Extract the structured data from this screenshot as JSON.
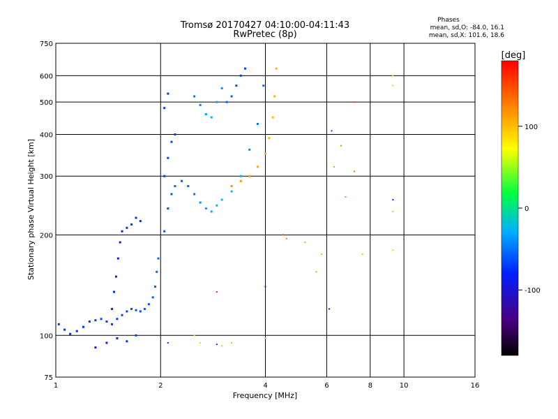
{
  "chart_data": {
    "type": "scatter",
    "title": "Tromsø 20170427 04:10:00-04:11:43",
    "subtitle": "RwPretec (8p)",
    "xlabel": "Frequency [MHz]",
    "ylabel": "Stationary phase Virtual Height [km]",
    "x_scale": "log2",
    "y_scale": "log",
    "xlim": [
      1,
      16
    ],
    "ylim": [
      75,
      750
    ],
    "x_ticks": [
      1,
      2,
      4,
      6,
      8,
      10,
      16
    ],
    "y_ticks": [
      75,
      100,
      200,
      300,
      400,
      500,
      600,
      750
    ],
    "grid": true,
    "phase_stats": {
      "title": "Phases",
      "line_o": "mean, sd,O: -84.0, 16.1",
      "line_x": "mean, sd,X: 101.6, 18.6"
    },
    "colorbar": {
      "label": "[deg]",
      "range": [
        -180,
        180
      ],
      "ticks": [
        100,
        0,
        -100
      ],
      "colormap": "rainbow"
    },
    "traces": [
      {
        "points": [
          [
            1.02,
            108,
            -95
          ],
          [
            1.06,
            104,
            -98
          ],
          [
            1.1,
            101,
            -100
          ],
          [
            1.15,
            103,
            -97
          ],
          [
            1.2,
            106,
            -95
          ],
          [
            1.25,
            110,
            -92
          ],
          [
            1.3,
            111,
            -92
          ],
          [
            1.35,
            112,
            -90
          ],
          [
            1.4,
            110,
            -93
          ],
          [
            1.45,
            108,
            -95
          ]
        ]
      },
      {
        "points": [
          [
            1.5,
            112,
            -90
          ],
          [
            1.55,
            115,
            -88
          ],
          [
            1.6,
            118,
            -86
          ],
          [
            1.65,
            120,
            -85
          ],
          [
            1.7,
            119,
            -85
          ],
          [
            1.75,
            118,
            -86
          ],
          [
            1.8,
            120,
            -84
          ],
          [
            1.85,
            124,
            -82
          ],
          [
            1.9,
            130,
            -80
          ],
          [
            1.93,
            140,
            -78
          ],
          [
            1.95,
            155,
            -76
          ],
          [
            1.97,
            170,
            -75
          ]
        ]
      },
      {
        "points": [
          [
            1.45,
            120,
            -100
          ],
          [
            1.47,
            135,
            -102
          ],
          [
            1.49,
            150,
            -105
          ],
          [
            1.51,
            170,
            -104
          ],
          [
            1.53,
            190,
            -100
          ],
          [
            1.55,
            205,
            -98
          ],
          [
            1.6,
            210,
            -95
          ],
          [
            1.65,
            215,
            -95
          ],
          [
            1.7,
            225,
            -96
          ],
          [
            1.75,
            220,
            -95
          ]
        ]
      },
      {
        "points": [
          [
            1.3,
            92,
            -105
          ],
          [
            1.4,
            95,
            -100
          ],
          [
            1.5,
            98,
            -100
          ],
          [
            1.6,
            96,
            -95
          ],
          [
            1.7,
            100,
            -90
          ]
        ]
      },
      {
        "points": [
          [
            2.05,
            205,
            -80
          ],
          [
            2.1,
            240,
            -85
          ],
          [
            2.15,
            265,
            -80
          ],
          [
            2.2,
            280,
            -78
          ],
          [
            2.3,
            290,
            -80
          ],
          [
            2.4,
            280,
            -75
          ],
          [
            2.5,
            265,
            -70
          ],
          [
            2.6,
            250,
            -60
          ],
          [
            2.7,
            240,
            -55
          ],
          [
            2.8,
            235,
            -50
          ],
          [
            2.9,
            245,
            -45
          ],
          [
            3.0,
            255,
            -40
          ],
          [
            3.2,
            270,
            -45
          ],
          [
            3.4,
            300,
            -50
          ],
          [
            3.6,
            360,
            -60
          ],
          [
            3.8,
            430,
            -70
          ],
          [
            3.95,
            560,
            -75
          ]
        ]
      },
      {
        "points": [
          [
            2.05,
            300,
            -90
          ],
          [
            2.1,
            340,
            -90
          ],
          [
            2.15,
            380,
            -88
          ],
          [
            2.2,
            400,
            -85
          ],
          [
            2.05,
            480,
            -90
          ],
          [
            2.1,
            530,
            -92
          ]
        ]
      },
      {
        "points": [
          [
            2.5,
            520,
            -70
          ],
          [
            2.6,
            490,
            -65
          ],
          [
            2.7,
            460,
            -55
          ],
          [
            2.8,
            450,
            -50
          ],
          [
            2.9,
            500,
            -55
          ],
          [
            3.0,
            550,
            -60
          ],
          [
            3.1,
            500,
            -75
          ],
          [
            3.2,
            520,
            -80
          ],
          [
            3.3,
            560,
            -85
          ],
          [
            3.4,
            600,
            -88
          ],
          [
            3.5,
            630,
            -90
          ]
        ]
      },
      {
        "points": [
          [
            3.2,
            280,
            110
          ],
          [
            3.4,
            290,
            110
          ],
          [
            3.6,
            300,
            105
          ],
          [
            3.8,
            320,
            100
          ],
          [
            4.0,
            350,
            95
          ],
          [
            4.1,
            390,
            95
          ],
          [
            4.2,
            450,
            93
          ],
          [
            4.25,
            520,
            95
          ],
          [
            4.3,
            630,
            95
          ]
        ]
      }
    ],
    "scatter_points": [
      [
        7.2,
        500,
        150
      ],
      [
        6.2,
        410,
        -90
      ],
      [
        6.3,
        320,
        110
      ],
      [
        6.6,
        370,
        120
      ],
      [
        7.2,
        310,
        130
      ],
      [
        6.8,
        260,
        115
      ],
      [
        4.5,
        200,
        150
      ],
      [
        4.6,
        195,
        120
      ],
      [
        5.2,
        190,
        95
      ],
      [
        5.6,
        155,
        110
      ],
      [
        5.8,
        175,
        30
      ],
      [
        7.6,
        175,
        90
      ],
      [
        9.3,
        180,
        80
      ],
      [
        9.3,
        255,
        -100
      ],
      [
        9.3,
        235,
        30
      ],
      [
        9.3,
        600,
        40
      ],
      [
        9.3,
        560,
        90
      ],
      [
        6.1,
        120,
        -110
      ],
      [
        4.0,
        140,
        -110
      ],
      [
        2.9,
        135,
        170
      ],
      [
        2.5,
        100,
        70
      ],
      [
        3.0,
        93,
        90
      ],
      [
        3.2,
        95,
        90
      ],
      [
        4.0,
        98,
        20
      ],
      [
        2.1,
        95,
        -100
      ],
      [
        2.6,
        95,
        40
      ],
      [
        2.9,
        94,
        -100
      ]
    ]
  }
}
